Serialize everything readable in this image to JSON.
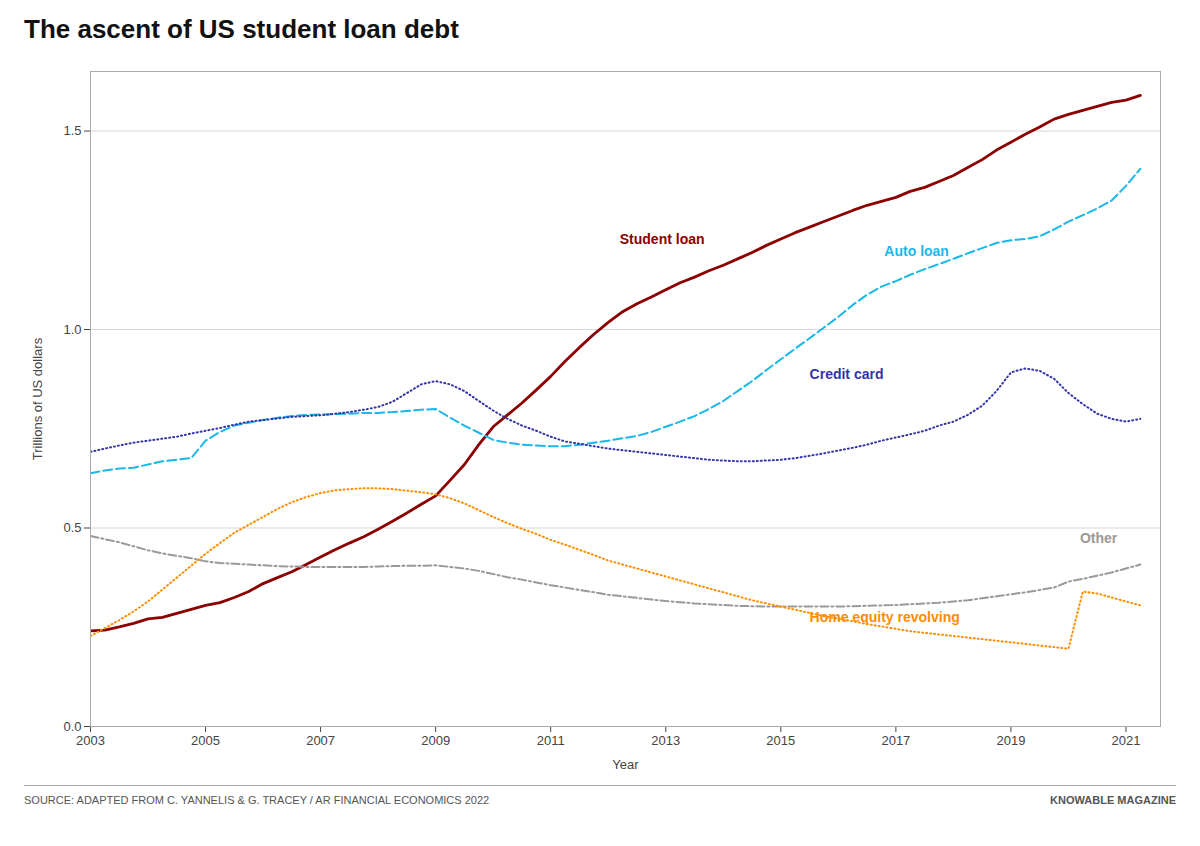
{
  "chart_data": {
    "type": "line",
    "title": "The ascent of US student loan debt",
    "xlabel": "Year",
    "ylabel": "Trillions of US dollars",
    "source": "SOURCE: ADAPTED FROM C. YANNELIS & G. TRACEY / AR FINANCIAL ECONOMICS 2022",
    "credit": "KNOWABLE MAGAZINE",
    "xlim": [
      2003,
      2021.6
    ],
    "xticks": [
      2003,
      2005,
      2007,
      2009,
      2011,
      2013,
      2015,
      2017,
      2019,
      2021
    ],
    "ylim": [
      0,
      1.65
    ],
    "yticks": [
      {
        "value": 0,
        "label": "0.0"
      },
      {
        "value": 0.5,
        "label": "0.5"
      },
      {
        "value": 1.0,
        "label": "1.0"
      },
      {
        "value": 1.5,
        "label": "1.5"
      }
    ],
    "grid": true,
    "x": [
      2003.0,
      2003.25,
      2003.5,
      2003.75,
      2004.0,
      2004.25,
      2004.5,
      2004.75,
      2005.0,
      2005.25,
      2005.5,
      2005.75,
      2006.0,
      2006.25,
      2006.5,
      2006.75,
      2007.0,
      2007.25,
      2007.5,
      2007.75,
      2008.0,
      2008.25,
      2008.5,
      2008.75,
      2009.0,
      2009.25,
      2009.5,
      2009.75,
      2010.0,
      2010.25,
      2010.5,
      2010.75,
      2011.0,
      2011.25,
      2011.5,
      2011.75,
      2012.0,
      2012.25,
      2012.5,
      2012.75,
      2013.0,
      2013.25,
      2013.5,
      2013.75,
      2014.0,
      2014.25,
      2014.5,
      2014.75,
      2015.0,
      2015.25,
      2015.5,
      2015.75,
      2016.0,
      2016.25,
      2016.5,
      2016.75,
      2017.0,
      2017.25,
      2017.5,
      2017.75,
      2018.0,
      2018.25,
      2018.5,
      2018.75,
      2019.0,
      2019.25,
      2019.5,
      2019.75,
      2020.0,
      2020.25,
      2020.5,
      2020.75,
      2021.0,
      2021.25
    ],
    "series": [
      {
        "name": "Student loan",
        "color": "#8B0000",
        "line_style": "solid",
        "values": [
          0.241,
          0.243,
          0.251,
          0.26,
          0.271,
          0.275,
          0.285,
          0.295,
          0.305,
          0.312,
          0.325,
          0.34,
          0.36,
          0.375,
          0.39,
          0.408,
          0.427,
          0.445,
          0.462,
          0.478,
          0.497,
          0.517,
          0.538,
          0.56,
          0.581,
          0.62,
          0.66,
          0.71,
          0.755,
          0.785,
          0.815,
          0.848,
          0.882,
          0.92,
          0.955,
          0.988,
          1.018,
          1.045,
          1.065,
          1.082,
          1.1,
          1.118,
          1.132,
          1.148,
          1.162,
          1.178,
          1.194,
          1.212,
          1.228,
          1.244,
          1.258,
          1.272,
          1.286,
          1.3,
          1.313,
          1.323,
          1.333,
          1.348,
          1.358,
          1.373,
          1.388,
          1.408,
          1.428,
          1.452,
          1.472,
          1.492,
          1.51,
          1.53,
          1.542,
          1.552,
          1.562,
          1.572,
          1.578,
          1.59
        ]
      },
      {
        "name": "Auto loan",
        "color": "#1AB8E8",
        "line_style": "dashed",
        "values": [
          0.638,
          0.645,
          0.65,
          0.652,
          0.66,
          0.668,
          0.672,
          0.676,
          0.72,
          0.742,
          0.758,
          0.765,
          0.772,
          0.778,
          0.782,
          0.785,
          0.786,
          0.787,
          0.788,
          0.79,
          0.79,
          0.792,
          0.795,
          0.798,
          0.8,
          0.778,
          0.758,
          0.74,
          0.722,
          0.715,
          0.71,
          0.708,
          0.706,
          0.706,
          0.71,
          0.715,
          0.72,
          0.726,
          0.732,
          0.742,
          0.755,
          0.768,
          0.782,
          0.8,
          0.82,
          0.845,
          0.87,
          0.898,
          0.925,
          0.952,
          0.978,
          1.005,
          1.032,
          1.062,
          1.088,
          1.108,
          1.122,
          1.138,
          1.152,
          1.165,
          1.178,
          1.192,
          1.205,
          1.218,
          1.225,
          1.228,
          1.235,
          1.252,
          1.272,
          1.288,
          1.305,
          1.325,
          1.362,
          1.405
        ]
      },
      {
        "name": "Credit card",
        "color": "#3333AA",
        "line_style": "dotted",
        "values": [
          0.692,
          0.7,
          0.708,
          0.715,
          0.72,
          0.725,
          0.73,
          0.738,
          0.745,
          0.752,
          0.76,
          0.768,
          0.772,
          0.776,
          0.78,
          0.782,
          0.784,
          0.788,
          0.792,
          0.798,
          0.805,
          0.818,
          0.84,
          0.862,
          0.87,
          0.862,
          0.845,
          0.82,
          0.796,
          0.775,
          0.758,
          0.745,
          0.73,
          0.718,
          0.712,
          0.706,
          0.7,
          0.696,
          0.692,
          0.688,
          0.684,
          0.68,
          0.676,
          0.672,
          0.67,
          0.668,
          0.668,
          0.67,
          0.672,
          0.676,
          0.682,
          0.688,
          0.695,
          0.702,
          0.71,
          0.72,
          0.728,
          0.736,
          0.745,
          0.758,
          0.768,
          0.785,
          0.808,
          0.845,
          0.892,
          0.902,
          0.896,
          0.876,
          0.84,
          0.812,
          0.788,
          0.775,
          0.768,
          0.775
        ]
      },
      {
        "name": "Other",
        "color": "#999999",
        "line_style": "dashdot",
        "values": [
          0.48,
          0.472,
          0.464,
          0.454,
          0.444,
          0.436,
          0.43,
          0.424,
          0.416,
          0.412,
          0.41,
          0.408,
          0.406,
          0.404,
          0.403,
          0.402,
          0.402,
          0.402,
          0.402,
          0.402,
          0.403,
          0.404,
          0.405,
          0.405,
          0.406,
          0.402,
          0.398,
          0.392,
          0.384,
          0.376,
          0.37,
          0.363,
          0.356,
          0.35,
          0.344,
          0.338,
          0.332,
          0.328,
          0.324,
          0.32,
          0.316,
          0.313,
          0.31,
          0.308,
          0.306,
          0.304,
          0.303,
          0.302,
          0.302,
          0.302,
          0.302,
          0.302,
          0.302,
          0.303,
          0.304,
          0.305,
          0.306,
          0.308,
          0.31,
          0.312,
          0.315,
          0.318,
          0.323,
          0.328,
          0.333,
          0.338,
          0.344,
          0.35,
          0.365,
          0.372,
          0.38,
          0.388,
          0.398,
          0.408
        ]
      },
      {
        "name": "Home equity revolving",
        "color": "#FF8C00",
        "line_style": "dotted",
        "values": [
          0.228,
          0.248,
          0.268,
          0.29,
          0.315,
          0.345,
          0.375,
          0.405,
          0.435,
          0.462,
          0.488,
          0.508,
          0.528,
          0.548,
          0.565,
          0.578,
          0.588,
          0.595,
          0.598,
          0.6,
          0.6,
          0.598,
          0.594,
          0.59,
          0.585,
          0.575,
          0.562,
          0.545,
          0.528,
          0.512,
          0.498,
          0.485,
          0.47,
          0.458,
          0.445,
          0.432,
          0.418,
          0.408,
          0.398,
          0.388,
          0.378,
          0.368,
          0.358,
          0.348,
          0.338,
          0.328,
          0.318,
          0.31,
          0.302,
          0.294,
          0.286,
          0.278,
          0.272,
          0.265,
          0.258,
          0.252,
          0.246,
          0.24,
          0.236,
          0.232,
          0.228,
          0.224,
          0.22,
          0.216,
          0.212,
          0.208,
          0.204,
          0.2,
          0.196,
          0.34,
          0.335,
          0.325,
          0.315,
          0.305
        ]
      }
    ],
    "annotations": [
      {
        "text": "Student loan",
        "x": 2012.2,
        "y": 1.215,
        "color": "#8B0000"
      },
      {
        "text": "Auto loan",
        "x": 2016.8,
        "y": 1.185,
        "color": "#1AB8E8"
      },
      {
        "text": "Credit card",
        "x": 2015.5,
        "y": 0.875,
        "color": "#3333AA"
      },
      {
        "text": "Other",
        "x": 2020.2,
        "y": 0.462,
        "color": "#999999"
      },
      {
        "text": "Home equity revolving",
        "x": 2015.5,
        "y": 0.262,
        "color": "#FF8C00"
      }
    ]
  }
}
